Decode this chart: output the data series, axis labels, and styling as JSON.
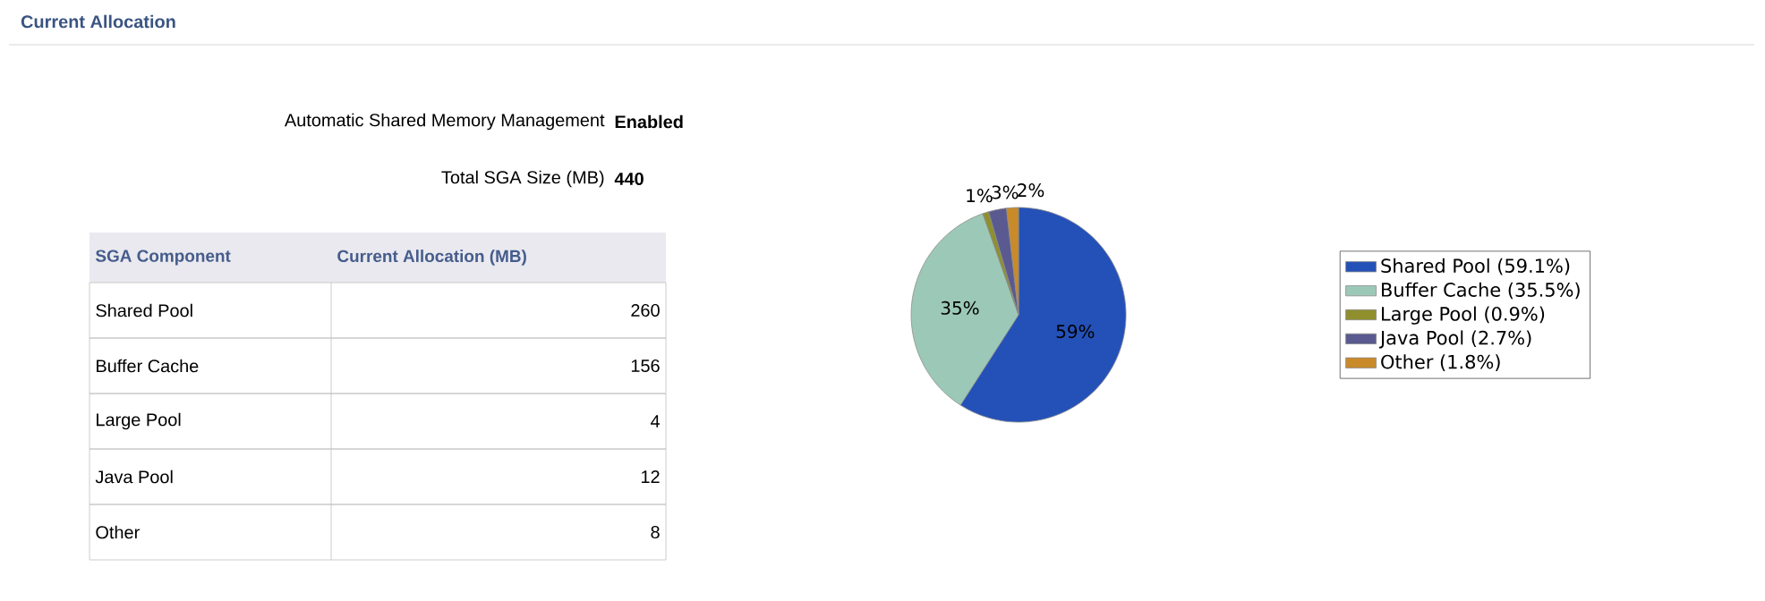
{
  "chart_data": [
    {
      "type": "other",
      "title": "Current Allocation",
      "annotations": [
        "Automatic Shared Memory Management",
        "Enabled",
        "Total SGA Size (MB)",
        "440"
      ],
      "xlabel": "SGA Component",
      "ylabel": "Current Allocation (MB)",
      "categories": [
        "Shared Pool",
        "Buffer Cache",
        "Large Pool",
        "Java Pool",
        "Other"
      ],
      "values": [
        260,
        156,
        4,
        12,
        8
      ],
      "data_labels": true
    },
    {
      "type": "pie",
      "categories": [
        "Shared Pool (59.1%)",
        "Buffer Cache (35.5%)",
        "Large Pool (0.9%)",
        "Java Pool (2.7%)",
        "Other (1.8%)"
      ],
      "values": [
        59.1,
        35.5,
        0.9,
        2.7,
        1.8
      ],
      "colors": [
        "#2451b8",
        "#9cc9b7",
        "#8f8f2e",
        "#5a5a90",
        "#c98a2a"
      ],
      "value_labels": [
        "59%",
        "35%",
        "1%",
        "3%",
        "2%"
      ],
      "legend": "right"
    }
  ]
}
